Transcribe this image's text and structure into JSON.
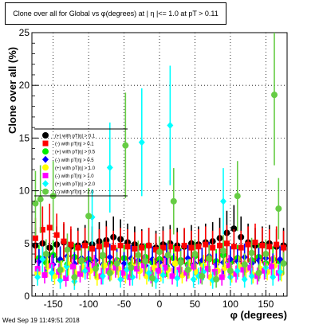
{
  "title": "Clone  over all for Global vs φ(degrees) at | η |<= 1.0 at pT > 0.11",
  "footer": "Wed Sep 19 11:49:51 2018",
  "chart_data": {
    "type": "scatter",
    "xlabel": "φ (degrees)",
    "ylabel": "Clone  over all (%)",
    "xlim": [
      -180,
      180
    ],
    "ylim": [
      0,
      25
    ],
    "x_ticks": [
      "-150",
      "-100",
      "-50",
      "0",
      "50",
      "100",
      "150"
    ],
    "y_ticks": [
      "0",
      "5",
      "10",
      "15",
      "20",
      "25"
    ],
    "grid": true,
    "legend_position": "left",
    "series": [
      {
        "name": "(+) with pT|η| > 0.1",
        "color": "#000000",
        "x": [
          -175,
          -165,
          -155,
          -145,
          -135,
          -125,
          -115,
          -105,
          -95,
          -85,
          -75,
          -65,
          -55,
          -45,
          -35,
          -25,
          -15,
          -5,
          5,
          15,
          25,
          35,
          45,
          55,
          65,
          75,
          85,
          95,
          105,
          115,
          125,
          135,
          145,
          155,
          165,
          175
        ],
        "y": [
          4.8,
          5.0,
          4.6,
          4.9,
          5.1,
          4.7,
          4.8,
          5.0,
          4.9,
          5.2,
          5.3,
          5.6,
          5.4,
          5.1,
          4.9,
          4.7,
          4.8,
          4.6,
          4.9,
          5.0,
          4.8,
          4.7,
          5.0,
          4.9,
          5.1,
          5.2,
          5.5,
          6.0,
          6.4,
          5.6,
          5.1,
          4.8,
          4.9,
          5.0,
          4.7,
          4.8
        ]
      },
      {
        "name": "(-) with pT|η| > 0.1",
        "color": "#ff0000",
        "x": [
          -175,
          -165,
          -155,
          -145,
          -135,
          -125,
          -115,
          -105,
          -95,
          -85,
          -75,
          -65,
          -55,
          -45,
          -35,
          -25,
          -15,
          -5,
          5,
          15,
          25,
          35,
          45,
          55,
          65,
          75,
          85,
          95,
          105,
          115,
          125,
          135,
          145,
          155,
          165,
          175
        ],
        "y": [
          5.5,
          6.3,
          6.5,
          5.8,
          5.2,
          4.9,
          4.6,
          4.8,
          4.5,
          4.7,
          4.9,
          4.6,
          4.8,
          4.7,
          4.5,
          4.6,
          4.8,
          4.4,
          4.6,
          4.7,
          4.5,
          4.8,
          4.6,
          4.7,
          4.9,
          4.6,
          4.8,
          5.0,
          4.7,
          4.6,
          4.9,
          5.1,
          4.8,
          4.7,
          4.9,
          4.6
        ]
      },
      {
        "name": "(+) with pT|η| > 0.5",
        "color": "#00ee00",
        "x": [
          -170,
          -160,
          -150,
          -140,
          -130,
          -120,
          -110,
          -100,
          -90,
          -80,
          -70,
          -60,
          -50,
          -40,
          -30,
          -20,
          -10,
          0,
          10,
          20,
          30,
          40,
          50,
          60,
          70,
          80,
          90,
          100,
          110,
          120,
          130,
          140,
          150,
          160,
          170
        ],
        "y": [
          3.6,
          3.2,
          3.9,
          3.4,
          3.0,
          3.7,
          3.3,
          3.5,
          2.9,
          3.8,
          3.1,
          3.4,
          3.6,
          3.0,
          3.3,
          3.7,
          3.2,
          3.5,
          2.8,
          3.6,
          3.4,
          3.0,
          3.8,
          3.1,
          3.5,
          3.3,
          3.9,
          3.2,
          3.6,
          3.0,
          3.4,
          3.7,
          3.1,
          3.5,
          3.3
        ]
      },
      {
        "name": "(-) with pT|η| > 0.5",
        "color": "#0000ff",
        "x": [
          -170,
          -160,
          -150,
          -140,
          -130,
          -120,
          -110,
          -100,
          -90,
          -80,
          -70,
          -60,
          -50,
          -40,
          -30,
          -20,
          -10,
          0,
          10,
          20,
          30,
          40,
          50,
          60,
          70,
          80,
          90,
          100,
          110,
          120,
          130,
          140,
          150,
          160,
          170
        ],
        "y": [
          3.3,
          3.7,
          3.0,
          3.5,
          3.8,
          3.1,
          3.6,
          3.2,
          3.4,
          3.0,
          3.7,
          3.3,
          3.1,
          3.6,
          3.4,
          2.9,
          3.5,
          3.2,
          3.7,
          3.0,
          3.3,
          3.6,
          3.1,
          3.4,
          3.8,
          3.0,
          3.2,
          3.5,
          3.3,
          3.7,
          3.1,
          3.4,
          3.6,
          3.0,
          3.5
        ]
      },
      {
        "name": "(+) with pT|η| > 1.0",
        "color": "#ffff00",
        "x": [
          -172,
          -158,
          -148,
          -138,
          -128,
          -118,
          -108,
          -98,
          -88,
          -78,
          -68,
          -58,
          -48,
          -38,
          -28,
          -18,
          -8,
          2,
          12,
          22,
          32,
          42,
          52,
          62,
          72,
          82,
          92,
          102,
          112,
          122,
          132,
          142,
          152,
          162,
          172
        ],
        "y": [
          2.2,
          2.8,
          1.9,
          2.5,
          3.0,
          2.1,
          2.7,
          2.4,
          1.8,
          2.9,
          2.3,
          2.6,
          2.0,
          2.8,
          2.4,
          1.9,
          2.7,
          2.2,
          2.5,
          3.1,
          2.0,
          2.6,
          2.3,
          2.9,
          1.8,
          2.4,
          2.7,
          2.1,
          2.8,
          2.5,
          2.0,
          2.6,
          2.3,
          2.9,
          2.2
        ]
      },
      {
        "name": "(-) with pT|η| > 1.0",
        "color": "#ff00ff",
        "x": [
          -172,
          -162,
          -152,
          -142,
          -132,
          -122,
          -112,
          -102,
          -92,
          -82,
          -72,
          -62,
          -52,
          -42,
          -32,
          -22,
          -12,
          -2,
          8,
          18,
          28,
          38,
          48,
          58,
          68,
          78,
          88,
          98,
          108,
          118,
          128,
          138,
          148,
          158,
          168
        ],
        "y": [
          2.6,
          2.0,
          2.9,
          2.3,
          1.7,
          2.8,
          2.1,
          2.5,
          2.9,
          1.9,
          2.4,
          2.7,
          2.2,
          1.8,
          2.6,
          2.9,
          2.0,
          2.4,
          2.7,
          1.9,
          2.5,
          2.2,
          2.8,
          2.0,
          2.6,
          2.3,
          1.8,
          2.9,
          2.1,
          2.5,
          2.7,
          1.9,
          2.4,
          2.8,
          2.2
        ]
      },
      {
        "name": "(+) with pT|η| > 2.0",
        "color": "#00ffff",
        "x": [
          -172,
          -165,
          -152,
          -140,
          -131,
          -120,
          -105,
          -95,
          -80,
          -70,
          -55,
          -46,
          -38,
          -25,
          -15,
          -5,
          5,
          15,
          25,
          40,
          48,
          55,
          62,
          75,
          90,
          100,
          110,
          120,
          130,
          140,
          150,
          160,
          170
        ],
        "y": [
          1.8,
          3.5,
          2.2,
          1.5,
          2.8,
          1.4,
          2.4,
          7.5,
          1.9,
          12.2,
          1.6,
          2.5,
          1.8,
          14.6,
          2.2,
          1.5,
          2.0,
          16.2,
          1.7,
          2.6,
          1.6,
          1.9,
          2.3,
          1.5,
          9.0,
          1.8,
          2.4,
          1.6,
          1.9,
          2.2,
          2.7,
          1.8,
          2.3
        ]
      },
      {
        "name": "(-) with pT|η| > 2.0",
        "color": "#66cc44",
        "x": [
          -175,
          -168,
          -160,
          -150,
          -140,
          -130,
          -120,
          -110,
          -100,
          -90,
          -80,
          -70,
          -60,
          -48,
          -40,
          -30,
          -20,
          -10,
          0,
          12,
          20,
          30,
          40,
          50,
          60,
          70,
          80,
          90,
          100,
          110,
          120,
          130,
          140,
          150,
          162,
          168,
          175
        ],
        "y": [
          8.8,
          9.2,
          4.0,
          9.5,
          2.5,
          4.4,
          1.8,
          3.4,
          7.6,
          2.6,
          3.9,
          2.2,
          3.1,
          14.3,
          2.7,
          3.9,
          3.3,
          1.7,
          4.2,
          3.9,
          9.0,
          3.2,
          2.5,
          4.0,
          1.9,
          3.6,
          1.6,
          4.3,
          2.4,
          9.5,
          3.0,
          4.1,
          2.2,
          4.0,
          19.1,
          8.3,
          3.1
        ]
      }
    ]
  }
}
